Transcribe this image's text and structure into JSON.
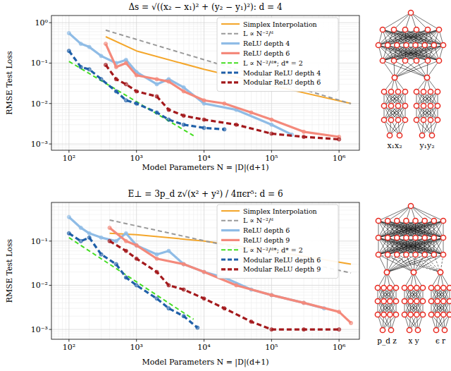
{
  "chart_data": [
    {
      "type": "line",
      "title": "Δs = √((x₂ − x₁)² + (y₂ − y₁)²): d = 4",
      "x_label": "Model Parameters N = |D|(d+1)",
      "y_label": "RMSE Test Loss",
      "log": true,
      "grid": true,
      "legend": "upper right",
      "xlim": [
        55,
        2000000
      ],
      "ylim": [
        0.0007,
        1.5
      ],
      "xticks": [
        {
          "value": 100,
          "label": "10²"
        },
        {
          "value": 1000,
          "label": "10³"
        },
        {
          "value": 10000,
          "label": "10⁴"
        },
        {
          "value": 100000,
          "label": "10⁵"
        },
        {
          "value": 1000000,
          "label": "10⁶"
        }
      ],
      "yticks": [
        {
          "value": 0.001,
          "label": "10⁻³"
        },
        {
          "value": 0.01,
          "label": "10⁻²"
        },
        {
          "value": 0.1,
          "label": "10⁻¹"
        },
        {
          "value": 1,
          "label": "10⁰"
        }
      ],
      "annotations": [
        "x₁x₂",
        "y₁y₂"
      ],
      "series": [
        {
          "name": "Simplex Interpolation",
          "color": "#f4a62a",
          "line_style": "solid",
          "marker": "none",
          "x": [
            350,
            1000,
            10000,
            100000,
            1500000
          ],
          "values": [
            0.45,
            0.2,
            0.07,
            0.028,
            0.01
          ]
        },
        {
          "name": "L ∝ N⁻²/ᵈ",
          "color": "#999999",
          "line_style": "dashed",
          "marker": "none",
          "x": [
            350,
            1500000
          ],
          "values": [
            0.65,
            0.0099
          ]
        },
        {
          "name": "ReLU depth 4",
          "color": "#8fbce6",
          "line_style": "solid",
          "marker": "circle",
          "x": [
            100,
            150,
            200,
            300,
            500,
            700,
            1000,
            2000,
            3000,
            5000,
            10000,
            30000,
            100000,
            200000
          ],
          "values": [
            0.55,
            0.3,
            0.25,
            0.15,
            0.1,
            0.12,
            0.06,
            0.03,
            0.04,
            0.025,
            0.01,
            0.007,
            0.003,
            0.0017
          ]
        },
        {
          "name": "ReLU depth 6",
          "color": "#f4897b",
          "line_style": "solid",
          "marker": "circle",
          "x": [
            350,
            500,
            700,
            1000,
            2000,
            3000,
            5000,
            10000,
            20000,
            50000,
            100000,
            300000,
            1000000
          ],
          "values": [
            0.3,
            0.08,
            0.1,
            0.05,
            0.04,
            0.035,
            0.02,
            0.012,
            0.01,
            0.006,
            0.004,
            0.002,
            0.0015
          ]
        },
        {
          "name": "L ∝ N⁻²/ᵈ*; d* = 2",
          "color": "#44dd22",
          "line_style": "dashed",
          "marker": "none",
          "x": [
            100,
            7000
          ],
          "values": [
            0.11,
            0.0016
          ]
        },
        {
          "name": "Modular ReLU depth 4",
          "color": "#1f5fa8",
          "line_style": "dashed",
          "marker": "circle",
          "x": [
            100,
            150,
            200,
            300,
            500,
            700,
            1000,
            2000,
            3000,
            5000,
            10000,
            20000
          ],
          "values": [
            0.2,
            0.08,
            0.07,
            0.04,
            0.02,
            0.012,
            0.01,
            0.006,
            0.004,
            0.003,
            0.0025,
            0.0023
          ]
        },
        {
          "name": "Modular ReLU depth 6",
          "color": "#a3191c",
          "line_style": "dashed",
          "marker": "circle",
          "x": [
            350,
            500,
            700,
            1000,
            2000,
            3000,
            5000,
            10000,
            30000,
            100000,
            300000,
            1000000
          ],
          "values": [
            0.09,
            0.04,
            0.03,
            0.02,
            0.015,
            0.007,
            0.005,
            0.004,
            0.003,
            0.0018,
            0.0015,
            0.0013
          ]
        }
      ]
    },
    {
      "type": "line",
      "title": "E⊥ = 3p_d z√(x² + y²) / 4πϵr⁵: d = 6",
      "x_label": "Model Parameters N = |D|(d+1)",
      "y_label": "RMSE Test Loss",
      "log": true,
      "grid": true,
      "legend": "upper right",
      "xlim": [
        55,
        2000000
      ],
      "ylim": [
        0.0006,
        0.75
      ],
      "xticks": [
        {
          "value": 100,
          "label": "10²"
        },
        {
          "value": 1000,
          "label": "10³"
        },
        {
          "value": 10000,
          "label": "10⁴"
        },
        {
          "value": 100000,
          "label": "10⁵"
        },
        {
          "value": 1000000,
          "label": "10⁶"
        }
      ],
      "yticks": [
        {
          "value": 0.001,
          "label": "10⁻³"
        },
        {
          "value": 0.01,
          "label": "10⁻²"
        },
        {
          "value": 0.1,
          "label": "10⁻¹"
        }
      ],
      "annotations": [
        "p_d z",
        "x y",
        "ϵ r"
      ],
      "series": [
        {
          "name": "Simplex Interpolation",
          "color": "#f4a62a",
          "line_style": "solid",
          "marker": "none",
          "x": [
            400,
            1000,
            10000,
            100000,
            1500000
          ],
          "values": [
            0.15,
            0.14,
            0.1,
            0.06,
            0.03
          ]
        },
        {
          "name": "L ∝ N⁻²/ᵈ",
          "color": "#999999",
          "line_style": "dashed",
          "marker": "none",
          "x": [
            400,
            1500000
          ],
          "values": [
            0.3,
            0.019
          ]
        },
        {
          "name": "ReLU depth 6",
          "color": "#8fbce6",
          "line_style": "solid",
          "marker": "circle",
          "x": [
            100,
            150,
            200,
            300,
            500,
            700,
            1000,
            2000,
            3000,
            5000,
            10000,
            20000,
            50000,
            100000,
            300000,
            600000
          ],
          "values": [
            0.35,
            0.2,
            0.15,
            0.12,
            0.1,
            0.15,
            0.08,
            0.05,
            0.06,
            0.03,
            0.02,
            0.015,
            0.008,
            0.006,
            0.004,
            0.003
          ]
        },
        {
          "name": "ReLU depth 9",
          "color": "#f4897b",
          "line_style": "solid",
          "marker": "circle",
          "x": [
            400,
            700,
            1000,
            2000,
            5000,
            10000,
            30000,
            100000,
            300000,
            1000000,
            1500000
          ],
          "values": [
            0.2,
            0.1,
            0.08,
            0.04,
            0.03,
            0.02,
            0.01,
            0.006,
            0.004,
            0.0025,
            0.0014
          ]
        },
        {
          "name": "L ∝ N⁻²/ᵈ*; d* = 2",
          "color": "#44dd22",
          "line_style": "dashed",
          "marker": "none",
          "x": [
            100,
            7000
          ],
          "values": [
            0.12,
            0.0017
          ]
        },
        {
          "name": "Modular ReLU depth 6",
          "color": "#1f5fa8",
          "line_style": "dashed",
          "marker": "circle",
          "x": [
            100,
            150,
            200,
            300,
            500,
            700,
            1000,
            2000,
            3000,
            5000,
            8000
          ],
          "values": [
            0.15,
            0.1,
            0.12,
            0.05,
            0.03,
            0.015,
            0.01,
            0.005,
            0.003,
            0.002,
            0.0011
          ]
        },
        {
          "name": "Modular ReLU depth 9",
          "color": "#a3191c",
          "line_style": "dashed",
          "marker": "circle",
          "x": [
            400,
            700,
            1000,
            2000,
            3000,
            5000,
            10000,
            20000,
            50000,
            100000,
            300000,
            1000000
          ],
          "values": [
            0.1,
            0.06,
            0.04,
            0.02,
            0.01,
            0.008,
            0.005,
            0.003,
            0.0015,
            0.001,
            0.001,
            0.001
          ]
        }
      ]
    }
  ]
}
